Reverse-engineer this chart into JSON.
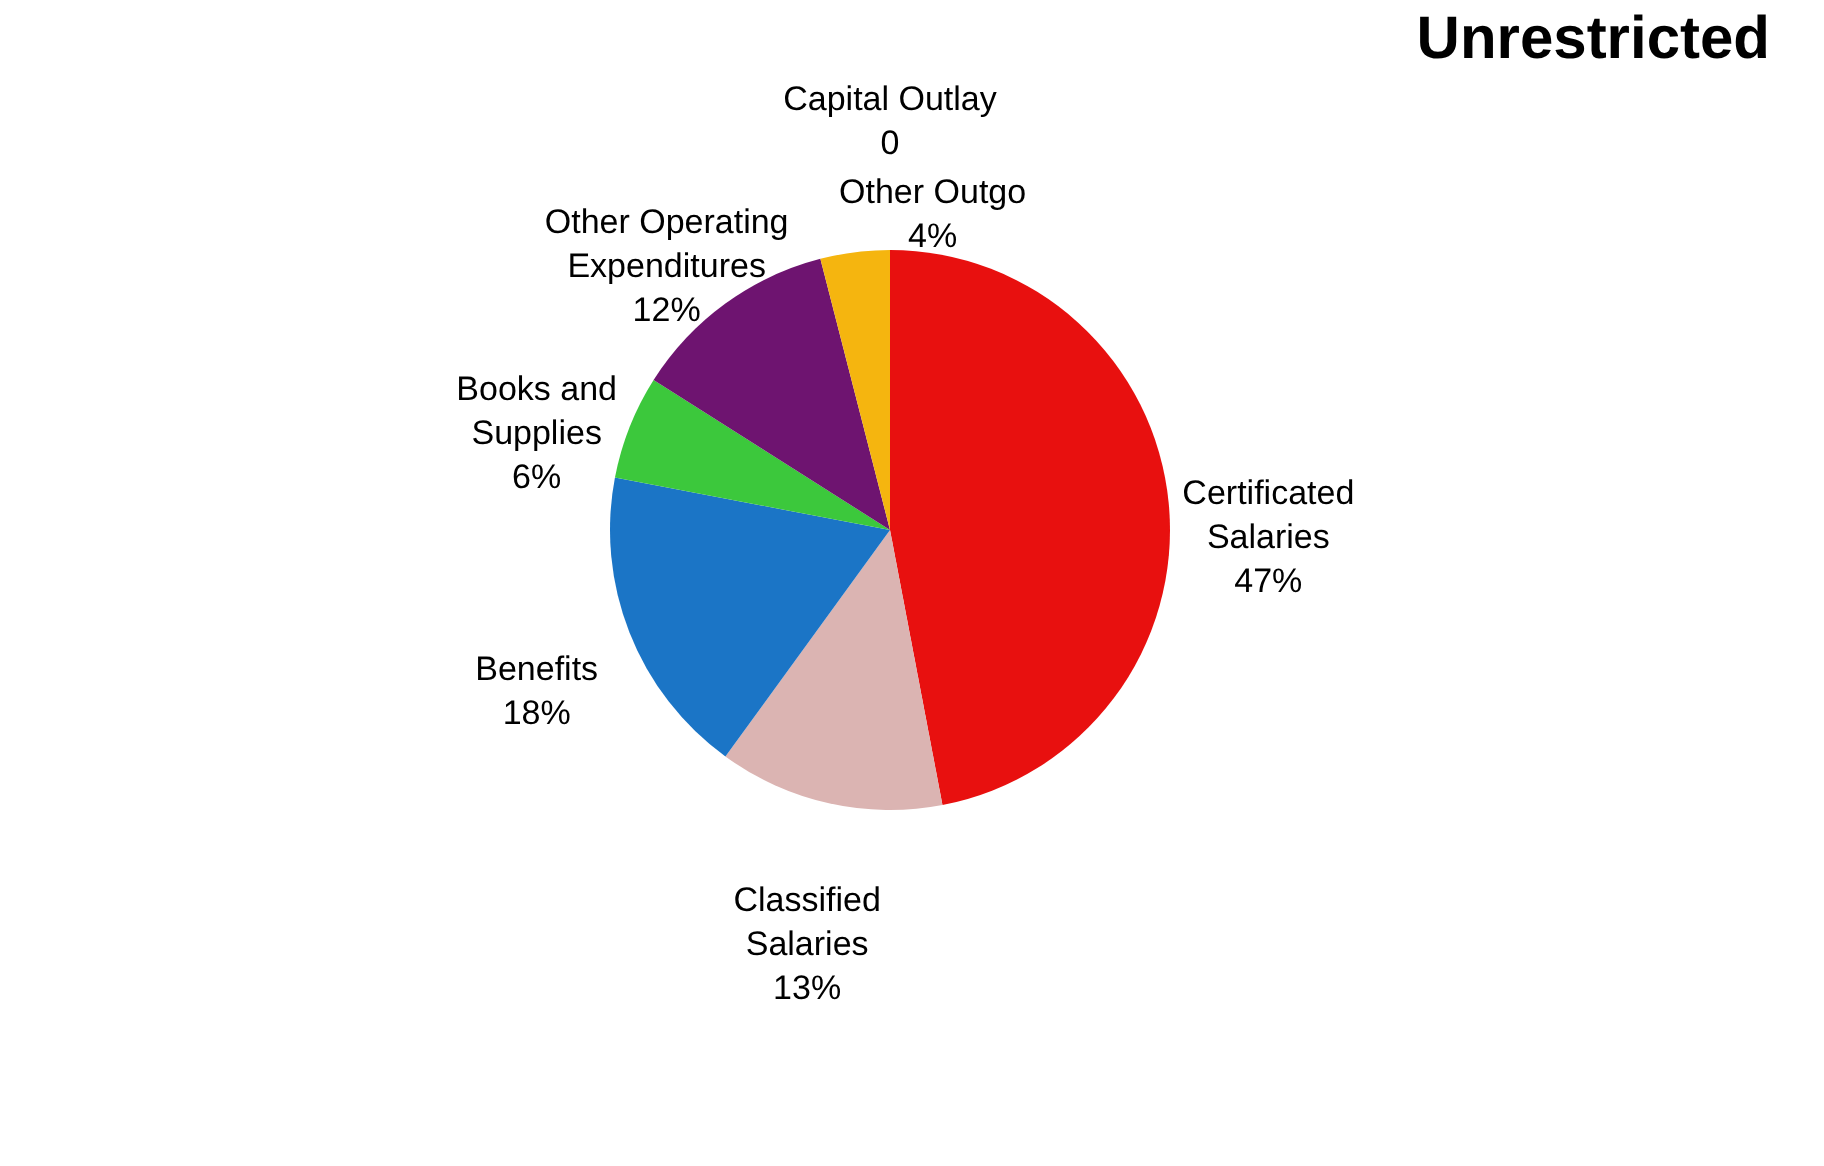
{
  "chart_data": {
    "type": "pie",
    "title": "Unrestricted",
    "categories": [
      "Certificated Salaries",
      "Classified Salaries",
      "Benefits",
      "Books and Supplies",
      "Other Operating Expenditures",
      "Capital Outlay",
      "Other Outgo"
    ],
    "values": [
      47,
      13,
      18,
      6,
      12,
      0,
      4
    ],
    "value_labels": [
      "47%",
      "13%",
      "18%",
      "6%",
      "12%",
      "0",
      "4%"
    ],
    "colors": [
      "#e8100f",
      "#dbb4b2",
      "#1b75c6",
      "#3cc83c",
      "#6e1470",
      "#f0e020",
      "#f5b50f"
    ]
  }
}
